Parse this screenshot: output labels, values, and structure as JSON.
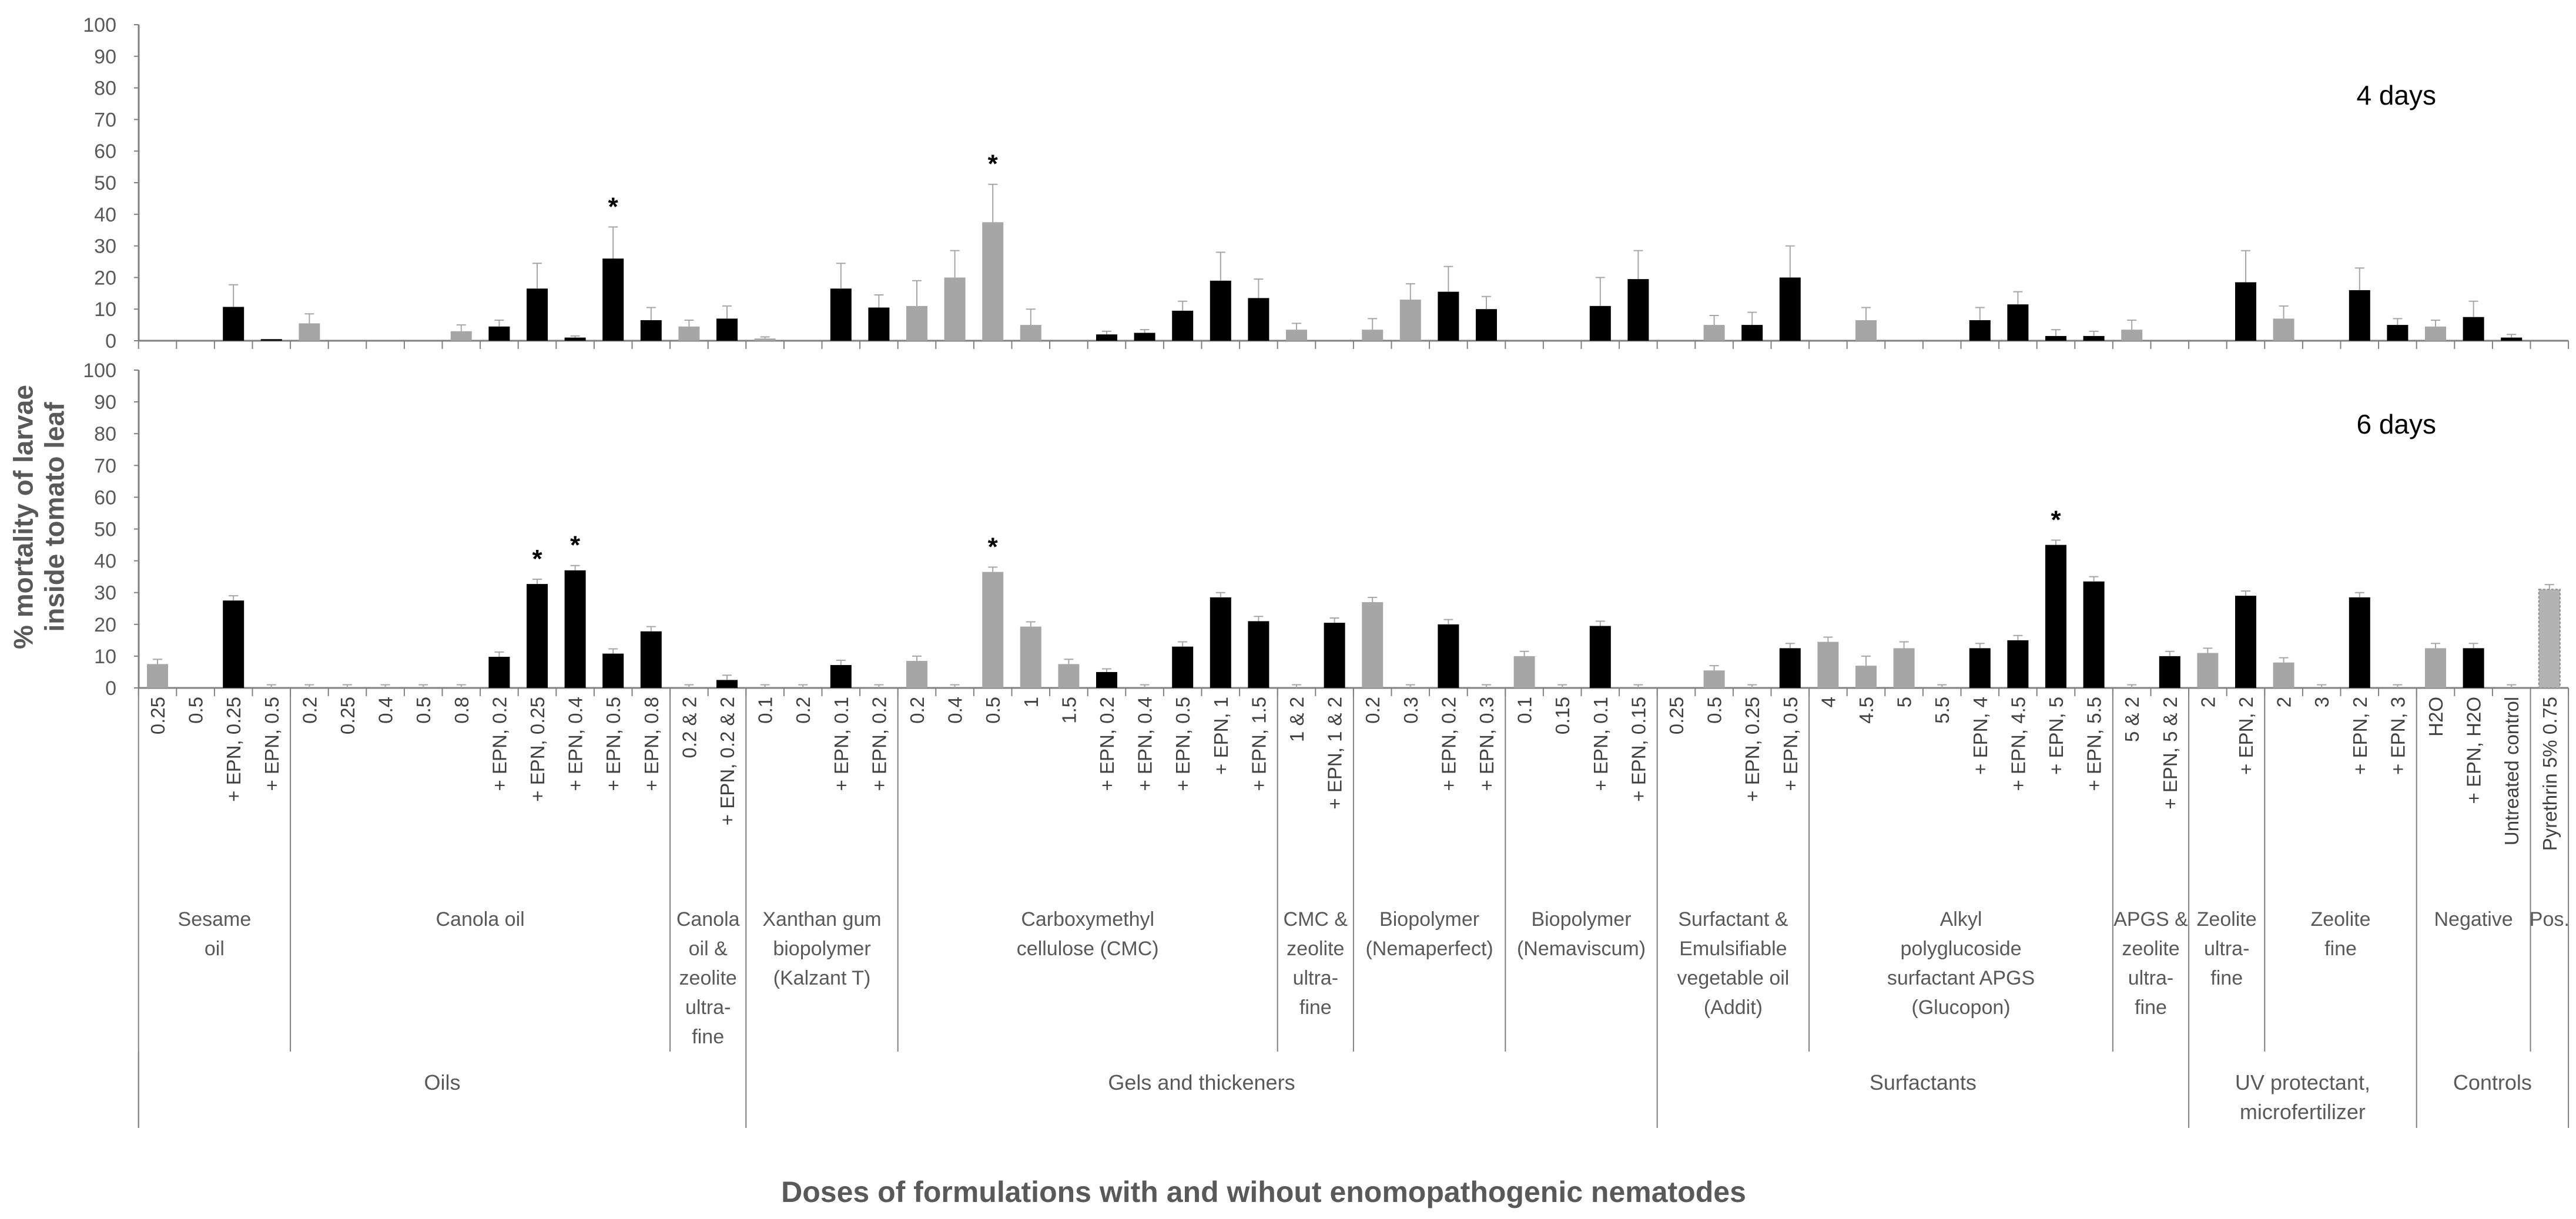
{
  "chart_data": {
    "type": "bar",
    "ylabel": "% mortality of larvae inside tomato leaf",
    "xlabel": "Doses of formulations with and wihout enomopathogenic nematodes",
    "ylim": [
      0,
      100
    ],
    "yticks": [
      "0",
      "10",
      "20",
      "30",
      "40",
      "50",
      "60",
      "70",
      "80",
      "90",
      "100"
    ],
    "colors": {
      "without_epn": "#a6a6a6",
      "with_epn": "#000000",
      "positive": "#b3b3b3",
      "axis": "#808080"
    },
    "panels": [
      {
        "label": "4 days"
      },
      {
        "label": "6 days"
      }
    ],
    "categories": [
      {
        "label": "0.25",
        "epn": false,
        "d4": 0,
        "e4": 0,
        "d6": 7.5,
        "e6": 1.5
      },
      {
        "label": "0.5",
        "epn": false,
        "d4": 0,
        "e4": 0,
        "d6": 0,
        "e6": 0
      },
      {
        "label": "+ EPN,  0.25",
        "epn": true,
        "d4": 10.7,
        "e4": 7,
        "d6": 27.5,
        "e6": 1.5
      },
      {
        "label": "+ EPN,  0.5",
        "epn": true,
        "d4": 0.5,
        "e4": 0,
        "d6": 0,
        "e6": 1
      },
      {
        "label": "0.2",
        "epn": false,
        "d4": 5.5,
        "e4": 3,
        "d6": 0,
        "e6": 1
      },
      {
        "label": "0.25",
        "epn": false,
        "d4": 0,
        "e4": 0,
        "d6": 0,
        "e6": 1
      },
      {
        "label": "0.4",
        "epn": false,
        "d4": 0,
        "e4": 0,
        "d6": 0,
        "e6": 1
      },
      {
        "label": "0.5",
        "epn": false,
        "d4": 0,
        "e4": 0,
        "d6": 0,
        "e6": 1
      },
      {
        "label": "0.8",
        "epn": false,
        "d4": 3,
        "e4": 2,
        "d6": 0,
        "e6": 1
      },
      {
        "label": "+ EPN,  0.2",
        "epn": true,
        "d4": 4.5,
        "e4": 2,
        "d6": 9.8,
        "e6": 1.5
      },
      {
        "label": "+ EPN,  0.25",
        "epn": true,
        "d4": 16.5,
        "e4": 8,
        "d6": 32.7,
        "e6": 1.5
      },
      {
        "label": "+ EPN,  0.4",
        "epn": true,
        "d4": 1,
        "e4": 0.5,
        "d6": 37,
        "e6": 1.5
      },
      {
        "label": "+ EPN,  0.5",
        "epn": true,
        "d4": 26,
        "e4": 10,
        "d6": 10.8,
        "e6": 1.5
      },
      {
        "label": "+ EPN,  0.8",
        "epn": true,
        "d4": 6.5,
        "e4": 4,
        "d6": 17.8,
        "e6": 1.5
      },
      {
        "label": "0.2  &  2",
        "epn": false,
        "d4": 4.5,
        "e4": 2,
        "d6": 0,
        "e6": 1
      },
      {
        "label": "+ EPN,  0.2 & 2",
        "epn": true,
        "d4": 7,
        "e4": 4,
        "d6": 2.5,
        "e6": 1.5
      },
      {
        "label": "0.1",
        "epn": false,
        "d4": 0.7,
        "e4": 0.5,
        "d6": 0,
        "e6": 1
      },
      {
        "label": "0.2",
        "epn": false,
        "d4": 0,
        "e4": 0,
        "d6": 0,
        "e6": 1
      },
      {
        "label": "+ EPN,  0.1",
        "epn": true,
        "d4": 16.5,
        "e4": 8,
        "d6": 7.2,
        "e6": 1.5
      },
      {
        "label": "+ EPN,  0.2",
        "epn": true,
        "d4": 10.5,
        "e4": 4,
        "d6": 0,
        "e6": 1
      },
      {
        "label": "0.2",
        "epn": false,
        "d4": 11,
        "e4": 8,
        "d6": 8.5,
        "e6": 1.5
      },
      {
        "label": "0.4",
        "epn": false,
        "d4": 20,
        "e4": 8.5,
        "d6": 0,
        "e6": 1
      },
      {
        "label": "0.5",
        "epn": false,
        "d4": 37.5,
        "e4": 12,
        "d6": 36.5,
        "e6": 1.5
      },
      {
        "label": "1",
        "epn": false,
        "d4": 5,
        "e4": 5,
        "d6": 19.3,
        "e6": 1.5
      },
      {
        "label": "1.5",
        "epn": false,
        "d4": 0,
        "e4": 0,
        "d6": 7.5,
        "e6": 1.5
      },
      {
        "label": "+ EPN,  0.2",
        "epn": true,
        "d4": 2,
        "e4": 1,
        "d6": 5,
        "e6": 1
      },
      {
        "label": "+ EPN,  0.4",
        "epn": true,
        "d4": 2.5,
        "e4": 1,
        "d6": 0,
        "e6": 1
      },
      {
        "label": "+ EPN,  0.5",
        "epn": true,
        "d4": 9.5,
        "e4": 3,
        "d6": 13,
        "e6": 1.5
      },
      {
        "label": "+ EPN,  1",
        "epn": true,
        "d4": 19,
        "e4": 9,
        "d6": 28.5,
        "e6": 1.5
      },
      {
        "label": "+ EPN,  1.5",
        "epn": true,
        "d4": 13.5,
        "e4": 6,
        "d6": 21,
        "e6": 1.5
      },
      {
        "label": "1 & 2",
        "epn": false,
        "d4": 3.5,
        "e4": 2,
        "d6": 0,
        "e6": 1
      },
      {
        "label": "+ EPN,  1 & 2",
        "epn": true,
        "d4": 0,
        "e4": 0,
        "d6": 20.5,
        "e6": 1.5
      },
      {
        "label": "0.2",
        "epn": false,
        "d4": 3.5,
        "e4": 3.5,
        "d6": 27,
        "e6": 1.5
      },
      {
        "label": "0.3",
        "epn": false,
        "d4": 13,
        "e4": 5,
        "d6": 0,
        "e6": 1
      },
      {
        "label": "+ EPN,  0.2",
        "epn": true,
        "d4": 15.5,
        "e4": 8,
        "d6": 20,
        "e6": 1.5
      },
      {
        "label": "+ EPN,  0.3",
        "epn": true,
        "d4": 10,
        "e4": 4,
        "d6": 0,
        "e6": 1
      },
      {
        "label": "0.1",
        "epn": false,
        "d4": 0,
        "e4": 0,
        "d6": 10,
        "e6": 1.5
      },
      {
        "label": "0.15",
        "epn": false,
        "d4": 0,
        "e4": 0,
        "d6": 0,
        "e6": 1
      },
      {
        "label": "+ EPN,  0.1",
        "epn": true,
        "d4": 11,
        "e4": 9,
        "d6": 19.5,
        "e6": 1.5
      },
      {
        "label": "+ EPN,  0.15",
        "epn": true,
        "d4": 19.5,
        "e4": 9,
        "d6": 0,
        "e6": 1,
        "override4": false
      },
      {
        "label": "0.25",
        "epn": false,
        "d4": 0,
        "e4": 0,
        "d6": 0,
        "e6": 0
      },
      {
        "label": "0.5",
        "epn": false,
        "d4": 5,
        "e4": 3,
        "d6": 5.5,
        "e6": 1.5
      },
      {
        "label": "+ EPN,  0.25",
        "epn": true,
        "d4": 5,
        "e4": 4,
        "d6": 0,
        "e6": 1
      },
      {
        "label": "+ EPN,  0.5",
        "epn": true,
        "d4": 20,
        "e4": 10,
        "d6": 12.5,
        "e6": 1.5
      },
      {
        "label": "4",
        "epn": false,
        "d4": 0,
        "e4": 0,
        "d6": 14.5,
        "e6": 1.5
      },
      {
        "label": "4.5",
        "epn": false,
        "d4": 6.5,
        "e4": 4,
        "d6": 7,
        "e6": 3
      },
      {
        "label": "5",
        "epn": false,
        "d4": 0,
        "e4": 0,
        "d6": 12.5,
        "e6": 2
      },
      {
        "label": "5.5",
        "epn": false,
        "d4": 0,
        "e4": 0,
        "d6": 0,
        "e6": 1
      },
      {
        "label": "+ EPN,  4",
        "epn": true,
        "d4": 6.5,
        "e4": 4,
        "d6": 12.5,
        "e6": 1.5
      },
      {
        "label": "+ EPN,  4.5",
        "epn": true,
        "d4": 11.5,
        "e4": 4,
        "d6": 15,
        "e6": 1.5
      },
      {
        "label": "+ EPN,  5",
        "epn": true,
        "d4": 1.5,
        "e4": 2,
        "d6": 45,
        "e6": 1.5
      },
      {
        "label": "+ EPN,  5.5",
        "epn": true,
        "d4": 1.5,
        "e4": 1.5,
        "d6": 33.5,
        "e6": 1.5
      },
      {
        "label": "5 & 2",
        "epn": false,
        "d4": 3.5,
        "e4": 3,
        "d6": 0,
        "e6": 1
      },
      {
        "label": "+ EPN,  5 & 2",
        "epn": true,
        "d4": 0,
        "e4": 0,
        "d6": 10,
        "e6": 1.5
      },
      {
        "label": "2",
        "epn": false,
        "d4": 0,
        "e4": 0,
        "d6": 11,
        "e6": 1.5
      },
      {
        "label": "+ EPN,  2",
        "epn": true,
        "d4": 18.5,
        "e4": 10,
        "d6": 29,
        "e6": 1.5
      },
      {
        "label": "2",
        "epn": false,
        "d4": 7,
        "e4": 4,
        "d6": 8,
        "e6": 1.5
      },
      {
        "label": "3",
        "epn": false,
        "d4": 0,
        "e4": 0,
        "d6": 0,
        "e6": 1
      },
      {
        "label": "+ EPN,  2",
        "epn": true,
        "d4": 16,
        "e4": 7,
        "d6": 28.5,
        "e6": 1.5
      },
      {
        "label": "+ EPN,  3",
        "epn": true,
        "d4": 5,
        "e4": 2,
        "d6": 0,
        "e6": 1
      },
      {
        "label": "H2O",
        "epn": false,
        "d4": 4.5,
        "e4": 2,
        "d6": 12.5,
        "e6": 1.5
      },
      {
        "label": "+ EPN, H2O",
        "epn": true,
        "d4": 7.5,
        "e4": 5,
        "d6": 12.5,
        "e6": 1.5
      },
      {
        "label": "Untreated  control",
        "epn": true,
        "d4": 1,
        "e4": 1,
        "d6": 0,
        "e6": 1
      },
      {
        "label": "Pyrethrin 5%  0.75",
        "epn": false,
        "positive": true,
        "d4": 0,
        "e4": 0,
        "d6": 31,
        "e6": 1.5
      }
    ],
    "significance_4d": [
      12,
      22
    ],
    "significance_6d": [
      10,
      11,
      22,
      50
    ],
    "asterisk": "*",
    "formulations": [
      {
        "label": [
          "Sesame",
          "oil"
        ],
        "start": 0,
        "end": 3
      },
      {
        "label": [
          "Canola oil"
        ],
        "start": 4,
        "end": 13
      },
      {
        "label": [
          "Canola",
          "oil &",
          "zeolite",
          "ultra-",
          "fine"
        ],
        "start": 14,
        "end": 15
      },
      {
        "label": [
          "Xanthan gum",
          "biopolymer",
          "(Kalzant T)"
        ],
        "start": 16,
        "end": 19
      },
      {
        "label": [
          "Carboxymethyl",
          "cellulose (CMC)"
        ],
        "start": 20,
        "end": 29
      },
      {
        "label": [
          "CMC &",
          "zeolite",
          "ultra-",
          "fine"
        ],
        "start": 30,
        "end": 31
      },
      {
        "label": [
          "Biopolymer",
          "(Nemaperfect)"
        ],
        "start": 32,
        "end": 35
      },
      {
        "label": [
          "Biopolymer",
          "(Nemaviscum)"
        ],
        "start": 36,
        "end": 39
      },
      {
        "label": [
          "Surfactant &",
          "Emulsifiable",
          "vegetable oil",
          "(Addit)"
        ],
        "start": 40,
        "end": 43
      },
      {
        "label": [
          "Alkyl",
          "polyglucoside",
          "surfactant APGS",
          "(Glucopon)"
        ],
        "start": 44,
        "end": 51
      },
      {
        "label": [
          "APGS &",
          "zeolite",
          "ultra-",
          "fine"
        ],
        "start": 52,
        "end": 53
      },
      {
        "label": [
          "Zeolite",
          "ultra-",
          "fine"
        ],
        "start": 54,
        "end": 55
      },
      {
        "label": [
          "Zeolite",
          "fine"
        ],
        "start": 56,
        "end": 59
      },
      {
        "label": [
          "Negative"
        ],
        "start": 60,
        "end": 62
      },
      {
        "label": [
          "Pos."
        ],
        "start": 63,
        "end": 63
      }
    ],
    "categories_top": [
      {
        "label": [
          "Oils"
        ],
        "start": 0,
        "end": 15
      },
      {
        "label": [
          "Gels and thickeners"
        ],
        "start": 16,
        "end": 39
      },
      {
        "label": [
          "Surfactants"
        ],
        "start": 40,
        "end": 53
      },
      {
        "label": [
          "UV protectant,",
          "microfertilizer"
        ],
        "start": 54,
        "end": 59
      },
      {
        "label": [
          "Controls"
        ],
        "start": 60,
        "end": 63
      }
    ]
  }
}
